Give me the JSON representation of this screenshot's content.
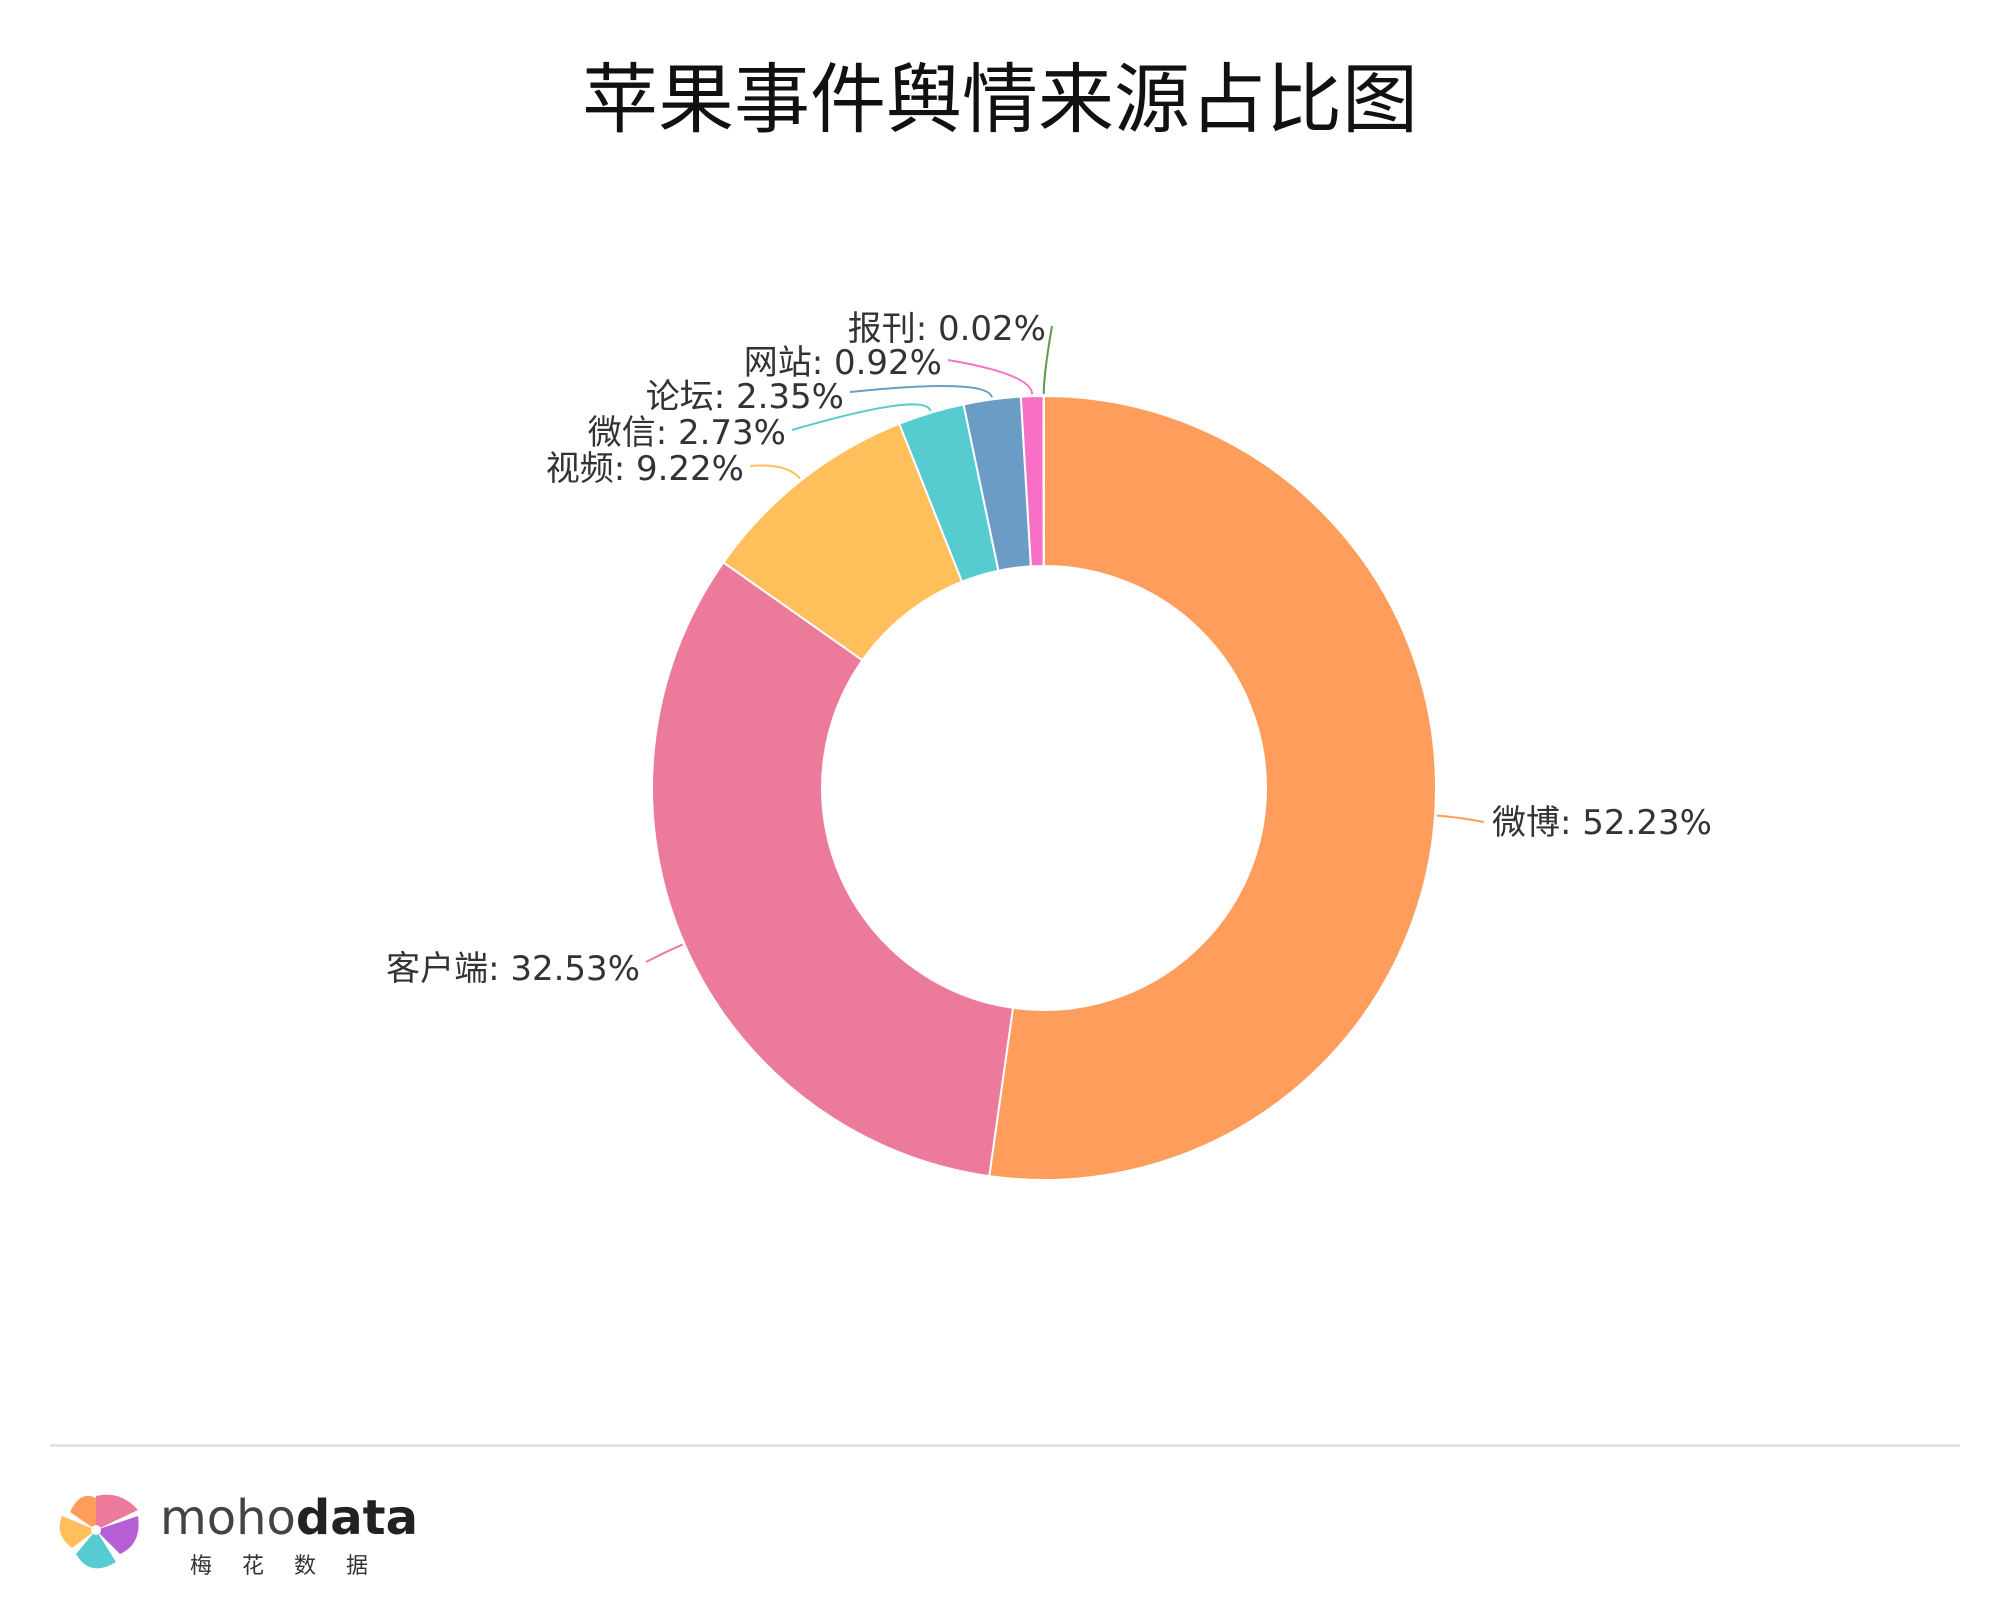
{
  "chart_data": {
    "type": "pie",
    "title": "苹果事件舆情来源占比图",
    "donut": true,
    "slices": [
      {
        "name": "微博",
        "value": 52.23,
        "label": "微博: 52.23%",
        "color": "#fe9d5c"
      },
      {
        "name": "客户端",
        "value": 32.53,
        "label": "客户端: 32.53%",
        "color": "#ec7a9a"
      },
      {
        "name": "视频",
        "value": 9.22,
        "label": "视频: 9.22%",
        "color": "#ffc05c"
      },
      {
        "name": "微信",
        "value": 2.73,
        "label": "微信: 2.73%",
        "color": "#56ccd1"
      },
      {
        "name": "论坛",
        "value": 2.35,
        "label": "论坛: 2.35%",
        "color": "#6b9cc6"
      },
      {
        "name": "网站",
        "value": 0.92,
        "label": "网站: 0.92%",
        "color": "#f86fc6"
      },
      {
        "name": "报刊",
        "value": 0.02,
        "label": "报刊: 0.02%",
        "color": "#5c9a4a"
      }
    ]
  },
  "footer": {
    "brand_light": "moho",
    "brand_bold": "data",
    "brand_sub": "梅花数据",
    "logo_icon": "pinwheel-logo-icon"
  }
}
